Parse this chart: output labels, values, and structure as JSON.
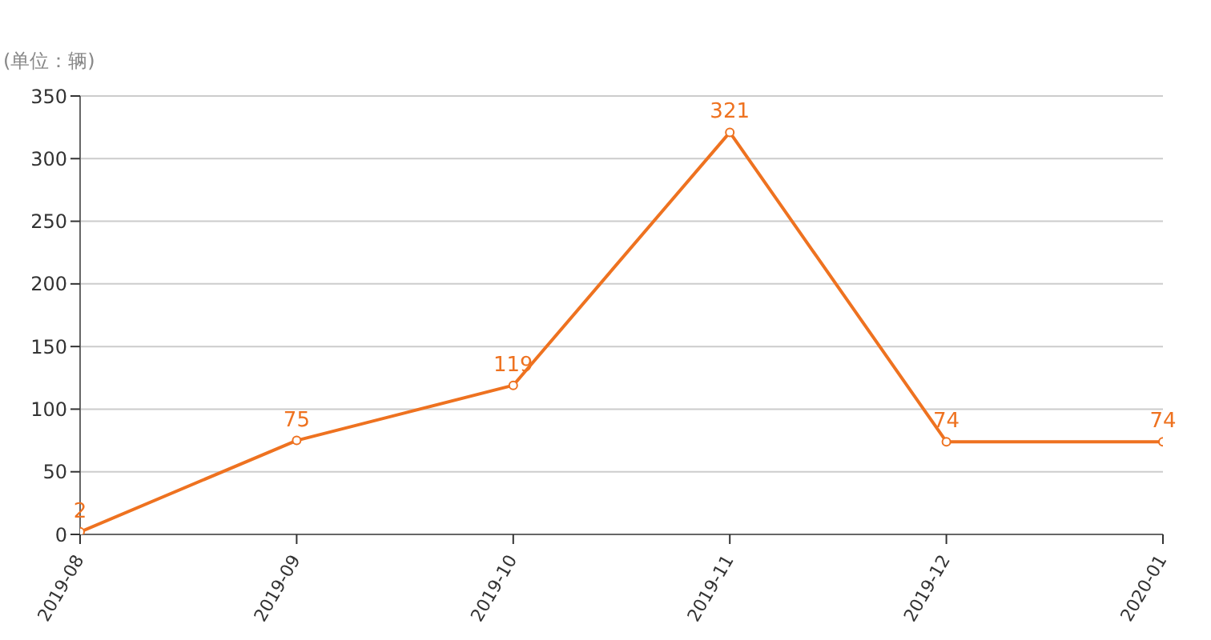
{
  "chart_data": {
    "type": "line",
    "ylabel": "(单位：辆)",
    "categories": [
      "2019-08",
      "2019-09",
      "2019-10",
      "2019-11",
      "2019-12",
      "2020-01"
    ],
    "series": [
      {
        "color": "#ee7220",
        "values": [
          2,
          75,
          119,
          321,
          74,
          74
        ]
      }
    ],
    "ylim": [
      0,
      350
    ],
    "yticks": [
      0,
      50,
      100,
      150,
      200,
      250,
      300,
      350
    ],
    "grid": "y",
    "marker": "circle",
    "line_style": "solid",
    "data_labels": true
  }
}
